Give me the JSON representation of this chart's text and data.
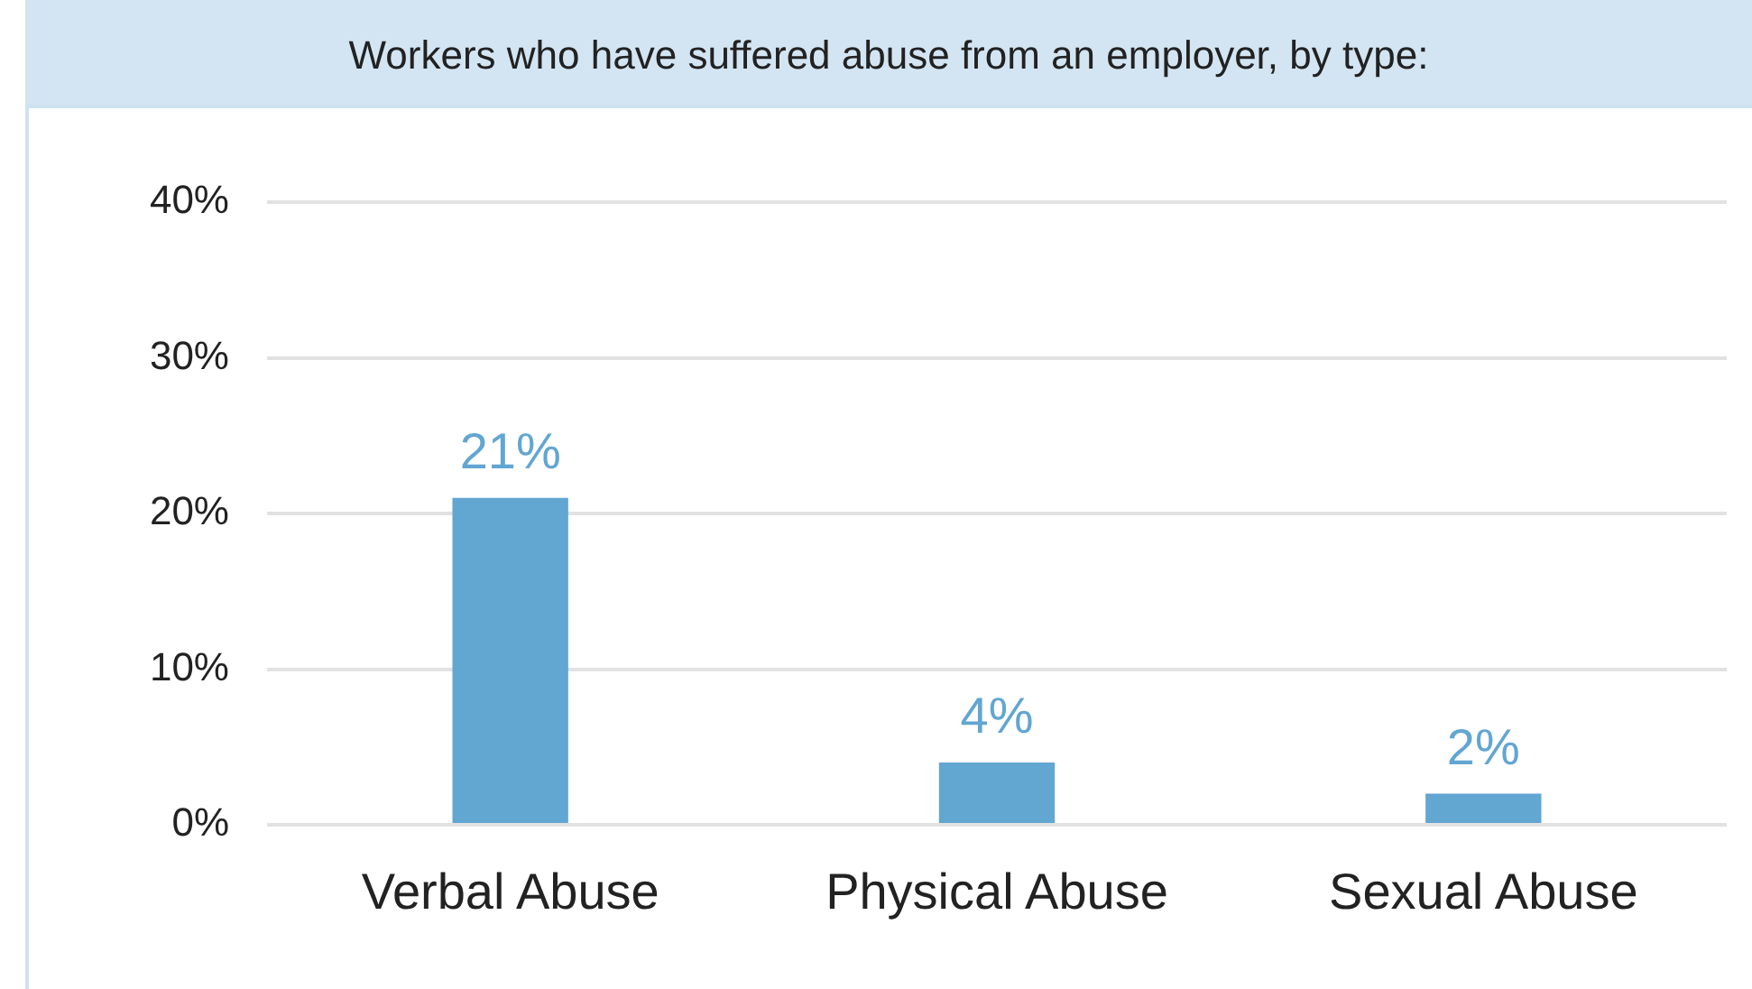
{
  "chart_data": {
    "type": "bar",
    "title": "Workers who have suffered abuse from an employer, by type:",
    "categories": [
      "Verbal Abuse",
      "Physical Abuse",
      "Sexual Abuse"
    ],
    "values": [
      21,
      4,
      2
    ],
    "value_labels": [
      "21%",
      "4%",
      "2%"
    ],
    "color": "#62a6d2",
    "ylim": [
      0,
      40
    ],
    "yticks": [
      {
        "value": 0,
        "label": "0%"
      },
      {
        "value": 10,
        "label": "10%"
      },
      {
        "value": 20,
        "label": "20%"
      },
      {
        "value": 30,
        "label": "30%"
      },
      {
        "value": 40,
        "label": "40%"
      }
    ],
    "grid": "y"
  }
}
